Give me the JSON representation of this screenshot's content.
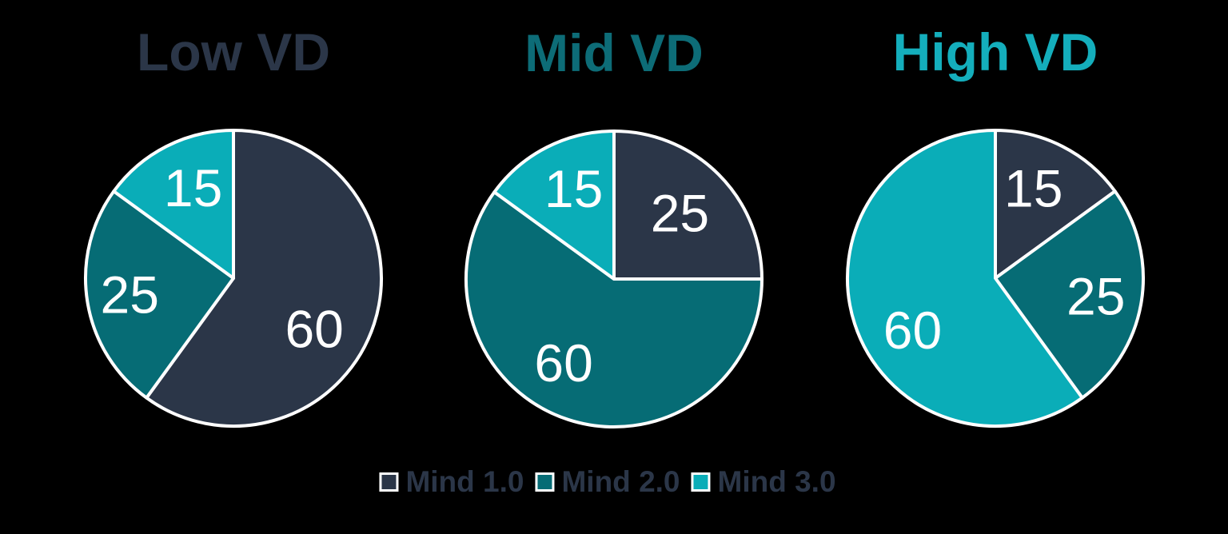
{
  "figure": {
    "background": "#000000"
  },
  "series": [
    {
      "name": "Mind 1.0",
      "color": "#2b3648"
    },
    {
      "name": "Mind 2.0",
      "color": "#066c75"
    },
    {
      "name": "Mind 3.0",
      "color": "#0aadb8"
    }
  ],
  "legend": {
    "items": [
      "Mind 1.0",
      "Mind 2.0",
      "Mind 3.0"
    ],
    "text_color": "#2b3648",
    "swatch_border_color": "#ffffff",
    "position": "bottom-center"
  },
  "chart_data": [
    {
      "type": "pie",
      "title": "Low VD",
      "title_color": "#2b3648",
      "start_angle_deg": 0,
      "direction": "clockwise",
      "categories": [
        "Mind 1.0",
        "Mind 2.0",
        "Mind 3.0"
      ],
      "values": [
        60,
        25,
        15
      ],
      "label_color": "#ffffff",
      "slice_border_color": "#ffffff",
      "slices": [
        {
          "series": "Mind 1.0",
          "value": 60,
          "label": "60",
          "label_angle_deg": 122,
          "label_dist_frac": 0.645
        },
        {
          "series": "Mind 2.0",
          "value": 25,
          "label": "25",
          "label_angle_deg": 261,
          "label_dist_frac": 0.71
        },
        {
          "series": "Mind 3.0",
          "value": 15,
          "label": "15",
          "label_angle_deg": 336,
          "label_dist_frac": 0.67
        }
      ]
    },
    {
      "type": "pie",
      "title": "Mid VD",
      "title_color": "#0d6c77",
      "start_angle_deg": 0,
      "direction": "clockwise",
      "categories": [
        "Mind 1.0",
        "Mind 2.0",
        "Mind 3.0"
      ],
      "values": [
        25,
        60,
        15
      ],
      "label_color": "#ffffff",
      "slice_border_color": "#ffffff",
      "slices": [
        {
          "series": "Mind 1.0",
          "value": 25,
          "label": "25",
          "label_angle_deg": 45,
          "label_dist_frac": 0.63
        },
        {
          "series": "Mind 2.0",
          "value": 60,
          "label": "60",
          "label_angle_deg": 211,
          "label_dist_frac": 0.66
        },
        {
          "series": "Mind 3.0",
          "value": 15,
          "label": "15",
          "label_angle_deg": 336,
          "label_dist_frac": 0.67
        }
      ]
    },
    {
      "type": "pie",
      "title": "High VD",
      "title_color": "#14aebc",
      "start_angle_deg": 0,
      "direction": "clockwise",
      "categories": [
        "Mind 1.0",
        "Mind 2.0",
        "Mind 3.0"
      ],
      "values": [
        15,
        25,
        60
      ],
      "label_color": "#ffffff",
      "slice_border_color": "#ffffff",
      "slices": [
        {
          "series": "Mind 1.0",
          "value": 15,
          "label": "15",
          "label_angle_deg": 23,
          "label_dist_frac": 0.66
        },
        {
          "series": "Mind 2.0",
          "value": 25,
          "label": "25",
          "label_angle_deg": 100,
          "label_dist_frac": 0.69
        },
        {
          "series": "Mind 3.0",
          "value": 60,
          "label": "60",
          "label_angle_deg": 238,
          "label_dist_frac": 0.66
        }
      ]
    }
  ]
}
